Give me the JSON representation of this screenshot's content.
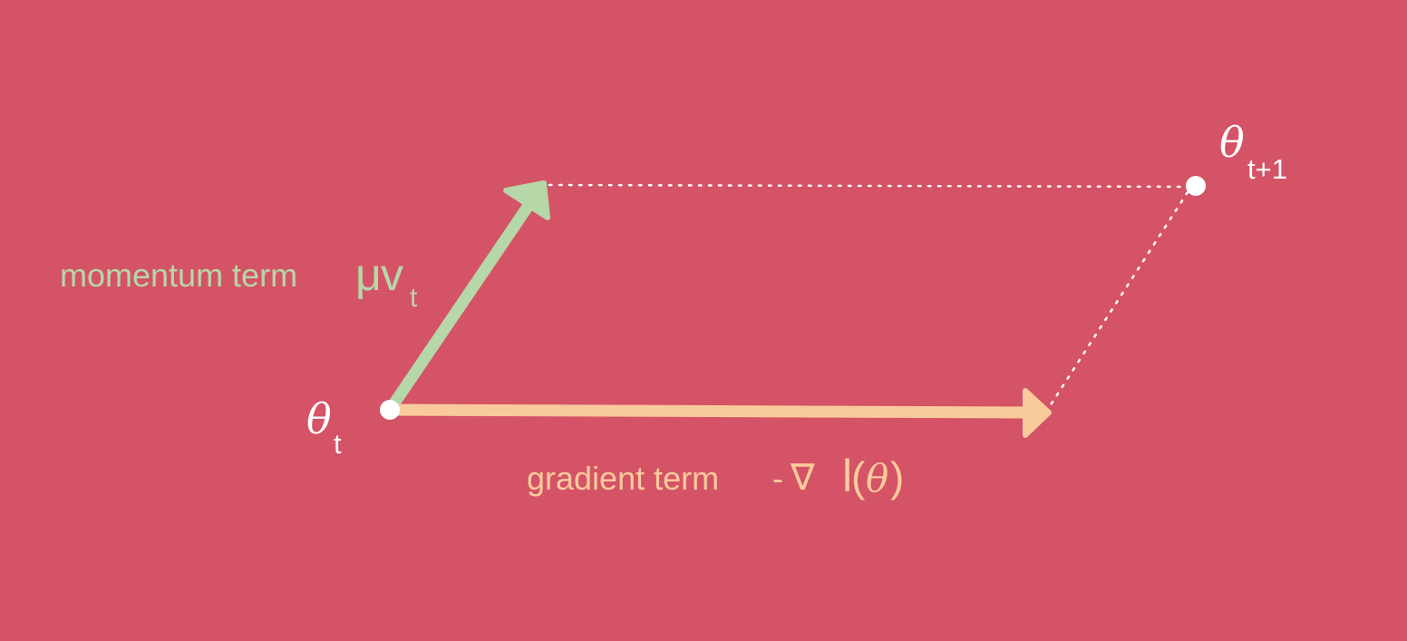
{
  "colors": {
    "background": "#d55366",
    "momentum": "#b6d7a8",
    "gradient": "#f9cb9c",
    "points": "#ffffff"
  },
  "labels": {
    "theta_t": {
      "symbol": "θ",
      "subscript": "t"
    },
    "theta_t1": {
      "symbol": "θ",
      "subscript": "t+1"
    },
    "momentum": {
      "text": "momentum term",
      "mu": "μ",
      "v": "v",
      "subscript": "t"
    },
    "gradient": {
      "text": "gradient term",
      "minus": "-",
      "nabla": "∇",
      "l": "l",
      "open": "(",
      "theta": "θ",
      "close": ")"
    }
  }
}
